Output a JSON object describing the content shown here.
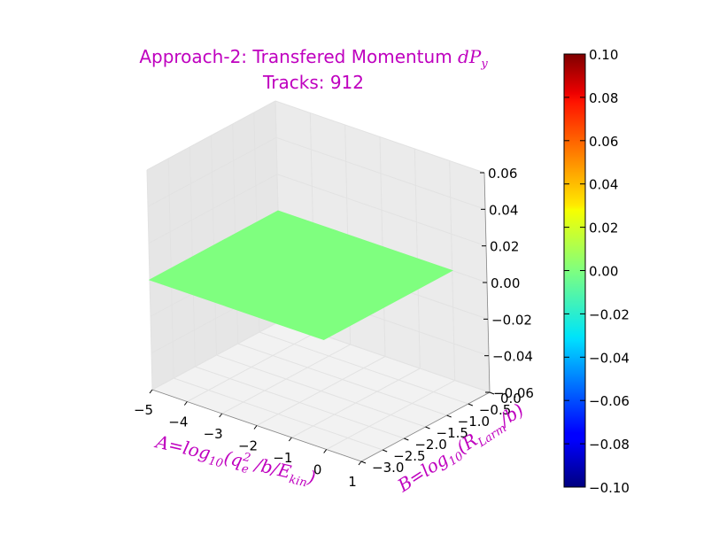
{
  "chart_data": {
    "type": "surface3d",
    "title": "Approach-2: Transfered Momentum dP_y",
    "title_line1": "Approach-2: Transfered Momentum ",
    "title_math": "dP",
    "title_math_sub": "y",
    "subtitle": "Tracks: 912",
    "xlabel": "A=log10(qe2/b/Ekin)",
    "ylabel": "B=log10(RLarm/b)",
    "x_ticks": [
      "−5",
      "−4",
      "−3",
      "−2",
      "−1",
      "0",
      "1"
    ],
    "y_ticks": [
      "−3.0",
      "−2.5",
      "−2.0",
      "−1.5",
      "−1.0",
      "−0.5",
      "0.0"
    ],
    "z_ticks": [
      "−0.06",
      "−0.04",
      "−0.02",
      "0.00",
      "0.02",
      "0.04",
      "0.06"
    ],
    "xlim": [
      -5,
      1
    ],
    "ylim": [
      -3.0,
      0.0
    ],
    "zlim": [
      -0.06,
      0.06
    ],
    "surface": {
      "x_range": [
        -5,
        0
      ],
      "y_range": [
        -3.0,
        0.0
      ],
      "z_value": 0.0,
      "color": "#7fff7f"
    },
    "colorbar": {
      "ticks": [
        "−0.10",
        "−0.08",
        "−0.06",
        "−0.04",
        "−0.02",
        "0.00",
        "0.02",
        "0.04",
        "0.06",
        "0.08",
        "0.10"
      ],
      "range": [
        -0.1,
        0.1
      ],
      "colormap": "jet"
    },
    "grid": true
  }
}
